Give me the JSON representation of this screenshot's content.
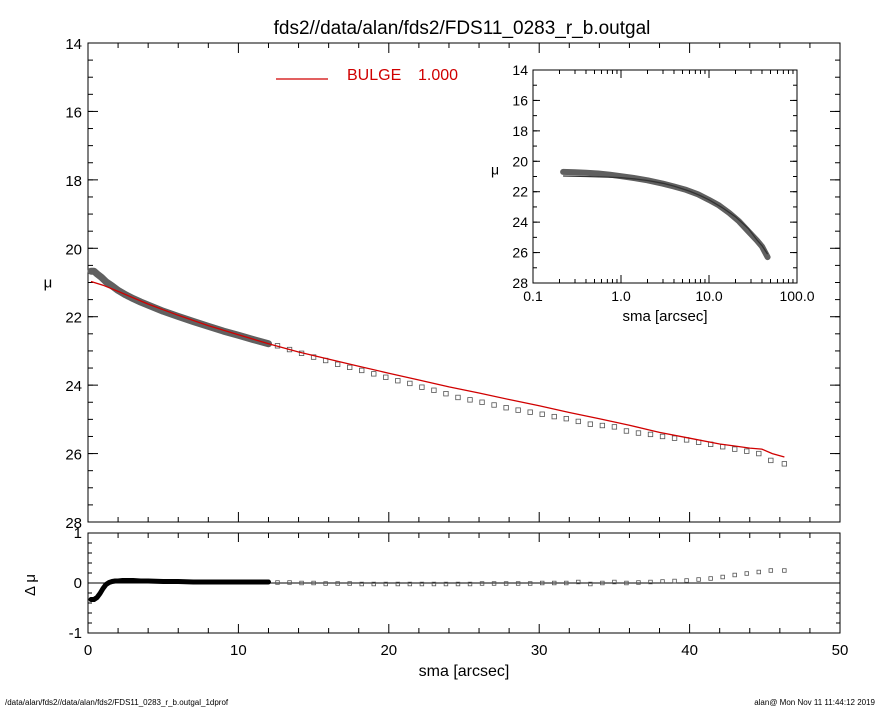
{
  "title": "fds2//data/alan/fds2/FDS11_0283_r_b.outgal",
  "footer_left": "/data/alan/fds2//data/alan/fds2/FDS11_0283_r_b.outgal_1dprof",
  "footer_right": "alan@  Mon Nov 11 11:44:12 2019",
  "colors": {
    "model": "#d00000",
    "data": "#606060",
    "residual_strong": "#000000"
  },
  "chart_data": [
    {
      "id": "main",
      "type": "scatter",
      "xlabel": "",
      "ylabel": "μ",
      "xlim": [
        0,
        50
      ],
      "ylim": [
        28,
        14
      ],
      "y_inverted": true,
      "yticks": [
        14,
        16,
        18,
        20,
        22,
        24,
        26,
        28
      ],
      "legend": {
        "label": "BULGE",
        "value": "1.000",
        "color": "#d00000",
        "placement": "top-center"
      },
      "series": [
        {
          "name": "data",
          "marker": "square",
          "dense_segment": {
            "x": [
              0.2,
              0.4,
              0.6,
              0.9,
              1.2,
              1.6,
              2.0,
              2.5,
              3.0,
              3.5,
              4.0,
              5.0,
              6.0,
              7.0,
              8.0,
              9.0,
              10.0,
              11.0,
              12.0
            ],
            "y": [
              20.67,
              20.67,
              20.75,
              20.85,
              20.98,
              21.1,
              21.23,
              21.36,
              21.47,
              21.57,
              21.66,
              21.84,
              21.99,
              22.14,
              22.28,
              22.42,
              22.54,
              22.67,
              22.79
            ]
          },
          "sparse_points": {
            "x": [
              12.6,
              13.4,
              14.2,
              15.0,
              15.8,
              16.6,
              17.4,
              18.2,
              19.0,
              19.8,
              20.6,
              21.4,
              22.2,
              23.0,
              23.8,
              24.6,
              25.4,
              26.2,
              27.0,
              27.8,
              28.6,
              29.4,
              30.2,
              31.0,
              31.8,
              32.6,
              33.4,
              34.2,
              35.0,
              35.8,
              36.6,
              37.4,
              38.2,
              39.0,
              39.8,
              40.6,
              41.4,
              42.2,
              43.0,
              43.8,
              44.6,
              45.4,
              46.3
            ],
            "y": [
              22.85,
              22.96,
              23.07,
              23.18,
              23.28,
              23.39,
              23.48,
              23.57,
              23.67,
              23.77,
              23.87,
              23.95,
              24.06,
              24.15,
              24.25,
              24.36,
              24.43,
              24.5,
              24.58,
              24.66,
              24.73,
              24.79,
              24.85,
              24.92,
              24.98,
              25.06,
              25.14,
              25.18,
              25.22,
              25.34,
              25.4,
              25.44,
              25.5,
              25.55,
              25.6,
              25.67,
              25.73,
              25.8,
              25.87,
              25.93,
              26.0,
              26.2,
              26.3
            ]
          }
        },
        {
          "name": "BULGE",
          "line": true,
          "x": [
            0.2,
            1.0,
            2.0,
            4.0,
            6.0,
            8.0,
            10.0,
            12.0,
            14.0,
            16.0,
            18.0,
            20.0,
            22.0,
            24.0,
            26.0,
            28.0,
            30.0,
            32.0,
            34.0,
            36.0,
            37.5,
            38.0,
            40.0,
            42.0,
            43.0,
            44.0,
            44.8,
            45.5,
            46.3
          ],
          "y": [
            20.97,
            21.08,
            21.26,
            21.63,
            21.96,
            22.26,
            22.53,
            22.79,
            23.03,
            23.24,
            23.45,
            23.65,
            23.85,
            24.05,
            24.23,
            24.42,
            24.6,
            24.8,
            24.98,
            25.17,
            25.33,
            25.38,
            25.55,
            25.72,
            25.78,
            25.84,
            25.87,
            26.0,
            26.1
          ]
        }
      ]
    },
    {
      "id": "inset",
      "type": "scatter",
      "xlabel": "sma [arcsec]",
      "ylabel": "μ",
      "xscale": "log",
      "xlim": [
        0.1,
        100
      ],
      "xticks": [
        0.1,
        1,
        10,
        100
      ],
      "xtick_labels": [
        "0.1",
        "1.0",
        "10.0",
        "100.0"
      ],
      "ylim": [
        28,
        14
      ],
      "yticks": [
        14,
        16,
        18,
        20,
        22,
        24,
        26,
        28
      ],
      "series": [
        {
          "name": "data",
          "x": [
            0.22,
            0.3,
            0.4,
            0.55,
            0.75,
            1.0,
            1.4,
            2.0,
            3.0,
            4.0,
            5.5,
            7.5,
            10.0,
            13.0,
            17.0,
            22.0,
            28.0,
            35.0,
            40.0,
            46.3
          ],
          "y": [
            20.7,
            20.72,
            20.75,
            20.8,
            20.88,
            20.98,
            21.1,
            21.25,
            21.47,
            21.66,
            21.88,
            22.17,
            22.54,
            22.9,
            23.4,
            23.95,
            24.6,
            25.2,
            25.6,
            26.3
          ]
        },
        {
          "name": "BULGE",
          "line": true,
          "x": [
            0.22,
            0.4,
            0.7,
            1.0,
            1.5,
            2.0,
            3.0,
            4.0,
            6.0,
            8.0,
            10.0,
            14.0,
            20.0,
            28.0,
            35.0,
            40.0,
            46.3
          ],
          "y": [
            20.97,
            21.0,
            21.04,
            21.08,
            21.17,
            21.26,
            21.45,
            21.63,
            21.96,
            22.26,
            22.53,
            23.03,
            23.65,
            24.42,
            25.17,
            25.55,
            26.1
          ]
        }
      ]
    },
    {
      "id": "residual",
      "type": "scatter",
      "xlabel": "sma [arcsec]",
      "ylabel": "Δ μ",
      "xlim": [
        0,
        50
      ],
      "xticks": [
        0,
        10,
        20,
        30,
        40,
        50
      ],
      "ylim": [
        -1,
        1
      ],
      "yticks": [
        -1,
        0,
        1
      ],
      "zero_line": true,
      "series": [
        {
          "name": "residual",
          "dense_segment": {
            "x": [
              0.2,
              0.4,
              0.6,
              0.8,
              1.0,
              1.2,
              1.4,
              1.6,
              1.8,
              2.0,
              2.3,
              2.6,
              3.0,
              3.5,
              4.0,
              5.0,
              6.0,
              7.0,
              8.0,
              9.0,
              10.0,
              11.0,
              12.0
            ],
            "y": [
              -0.33,
              -0.33,
              -0.29,
              -0.21,
              -0.11,
              -0.03,
              0.01,
              0.03,
              0.04,
              0.04,
              0.05,
              0.05,
              0.05,
              0.04,
              0.04,
              0.03,
              0.03,
              0.02,
              0.02,
              0.02,
              0.02,
              0.02,
              0.02
            ]
          },
          "sparse_points": {
            "x": [
              12.6,
              13.4,
              14.2,
              15.0,
              15.8,
              16.6,
              17.4,
              18.2,
              19.0,
              19.8,
              20.6,
              21.4,
              22.2,
              23.0,
              23.8,
              24.6,
              25.4,
              26.2,
              27.0,
              27.8,
              28.6,
              29.4,
              30.2,
              31.0,
              31.8,
              32.6,
              33.4,
              34.2,
              35.0,
              35.8,
              36.6,
              37.4,
              38.2,
              39.0,
              39.8,
              40.6,
              41.4,
              42.2,
              43.0,
              43.8,
              44.6,
              45.4,
              46.3
            ],
            "y": [
              0.01,
              0.01,
              0.0,
              0.0,
              -0.01,
              -0.01,
              -0.01,
              -0.02,
              -0.02,
              -0.02,
              -0.02,
              -0.02,
              -0.02,
              -0.02,
              -0.02,
              -0.02,
              -0.02,
              -0.01,
              -0.01,
              -0.01,
              -0.01,
              -0.01,
              0.0,
              0.0,
              0.0,
              0.02,
              -0.02,
              0.0,
              0.02,
              0.0,
              0.01,
              0.02,
              0.03,
              0.04,
              0.05,
              0.07,
              0.09,
              0.12,
              0.16,
              0.19,
              0.22,
              0.25,
              0.25
            ]
          }
        }
      ]
    }
  ]
}
